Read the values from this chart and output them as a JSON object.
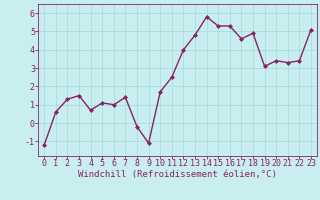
{
  "x": [
    0,
    1,
    2,
    3,
    4,
    5,
    6,
    7,
    8,
    9,
    10,
    11,
    12,
    13,
    14,
    15,
    16,
    17,
    18,
    19,
    20,
    21,
    22,
    23
  ],
  "y": [
    -1.2,
    0.6,
    1.3,
    1.5,
    0.7,
    1.1,
    1.0,
    1.4,
    -0.2,
    -1.1,
    1.7,
    2.5,
    4.0,
    4.8,
    5.8,
    5.3,
    5.3,
    4.6,
    4.9,
    3.1,
    3.4,
    3.3,
    3.4,
    5.1
  ],
  "line_color": "#882266",
  "marker": "D",
  "marker_size": 2,
  "bg_color": "#c8eef0",
  "grid_color": "#aadddd",
  "xlabel": "Windchill (Refroidissement éolien,°C)",
  "xlabel_color": "#882266",
  "tick_color": "#882266",
  "ylim": [
    -1.8,
    6.5
  ],
  "xlim": [
    -0.5,
    23.5
  ],
  "yticks": [
    -1,
    0,
    1,
    2,
    3,
    4,
    5,
    6
  ],
  "xticks": [
    0,
    1,
    2,
    3,
    4,
    5,
    6,
    7,
    8,
    9,
    10,
    11,
    12,
    13,
    14,
    15,
    16,
    17,
    18,
    19,
    20,
    21,
    22,
    23
  ],
  "linewidth": 1.0,
  "label_fontsize": 6.5,
  "tick_fontsize": 6.0
}
